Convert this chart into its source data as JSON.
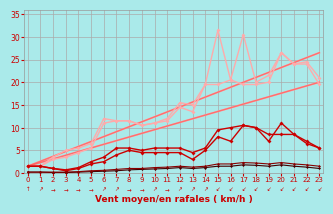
{
  "title": "",
  "xlabel": "Vent moyen/en rafales ( km/h )",
  "xlabel_color": "#cc0000",
  "background_color": "#aaeaea",
  "grid_color": "#aaaaaa",
  "x_ticks": [
    0,
    1,
    2,
    3,
    4,
    5,
    6,
    7,
    8,
    9,
    10,
    11,
    12,
    13,
    14,
    15,
    16,
    17,
    18,
    19,
    20,
    21,
    22,
    23
  ],
  "y_ticks": [
    0,
    5,
    10,
    15,
    20,
    25,
    30,
    35
  ],
  "xlim": [
    -0.3,
    23.3
  ],
  "ylim": [
    0,
    36
  ],
  "series": [
    {
      "comment": "straight line lower light pink",
      "x": [
        0,
        23
      ],
      "y": [
        1.5,
        20.0
      ],
      "color": "#ffaaaa",
      "lw": 1.3,
      "marker": null,
      "ms": 0,
      "alpha": 1.0,
      "zorder": 2
    },
    {
      "comment": "straight line upper light pink",
      "x": [
        0,
        23
      ],
      "y": [
        1.5,
        26.5
      ],
      "color": "#ffaaaa",
      "lw": 1.3,
      "marker": null,
      "ms": 0,
      "alpha": 1.0,
      "zorder": 2
    },
    {
      "comment": "straight line lower medium red",
      "x": [
        0,
        23
      ],
      "y": [
        1.5,
        20.0
      ],
      "color": "#ff5555",
      "lw": 1.0,
      "marker": null,
      "ms": 0,
      "alpha": 0.7,
      "zorder": 3
    },
    {
      "comment": "straight line upper medium red",
      "x": [
        0,
        23
      ],
      "y": [
        1.5,
        26.5
      ],
      "color": "#ff5555",
      "lw": 1.0,
      "marker": null,
      "ms": 0,
      "alpha": 0.7,
      "zorder": 3
    },
    {
      "comment": "zigzag upper light pink with markers - first",
      "x": [
        0,
        1,
        2,
        3,
        4,
        5,
        6,
        7,
        8,
        9,
        10,
        11,
        12,
        13,
        14,
        15,
        16,
        17,
        18,
        19,
        20,
        21,
        22,
        23
      ],
      "y": [
        1.5,
        1.5,
        3.5,
        5.0,
        5.5,
        6.5,
        12.0,
        11.5,
        11.5,
        10.5,
        11.0,
        12.0,
        15.5,
        15.0,
        19.5,
        31.5,
        20.5,
        30.5,
        20.0,
        21.5,
        26.5,
        24.0,
        24.5,
        21.0
      ],
      "color": "#ffaaaa",
      "lw": 1.0,
      "marker": "D",
      "ms": 2.0,
      "alpha": 1.0,
      "zorder": 4
    },
    {
      "comment": "zigzag upper light pink with markers - second",
      "x": [
        0,
        1,
        2,
        3,
        4,
        5,
        6,
        7,
        8,
        9,
        10,
        11,
        12,
        13,
        14,
        15,
        16,
        17,
        18,
        19,
        20,
        21,
        22,
        23
      ],
      "y": [
        1.5,
        1.5,
        3.0,
        3.5,
        4.5,
        5.5,
        11.0,
        11.5,
        11.5,
        10.5,
        11.0,
        11.5,
        14.5,
        13.5,
        19.5,
        19.5,
        20.5,
        19.5,
        19.5,
        20.0,
        26.5,
        24.0,
        24.0,
        19.5
      ],
      "color": "#ffaaaa",
      "lw": 1.0,
      "marker": "D",
      "ms": 2.0,
      "alpha": 1.0,
      "zorder": 4
    },
    {
      "comment": "dark red zigzag lower - first",
      "x": [
        0,
        1,
        2,
        3,
        4,
        5,
        6,
        7,
        8,
        9,
        10,
        11,
        12,
        13,
        14,
        15,
        16,
        17,
        18,
        19,
        20,
        21,
        22,
        23
      ],
      "y": [
        1.5,
        1.5,
        1.0,
        0.7,
        1.2,
        2.5,
        3.5,
        5.5,
        5.5,
        5.0,
        5.5,
        5.5,
        5.5,
        4.5,
        5.5,
        9.5,
        10.0,
        10.5,
        10.0,
        8.5,
        8.5,
        8.5,
        6.5,
        5.5
      ],
      "color": "#cc0000",
      "lw": 1.0,
      "marker": "D",
      "ms": 2.0,
      "alpha": 1.0,
      "zorder": 5
    },
    {
      "comment": "dark red zigzag lower - second",
      "x": [
        0,
        1,
        2,
        3,
        4,
        5,
        6,
        7,
        8,
        9,
        10,
        11,
        12,
        13,
        14,
        15,
        16,
        17,
        18,
        19,
        20,
        21,
        22,
        23
      ],
      "y": [
        1.5,
        1.5,
        1.0,
        0.5,
        1.0,
        2.0,
        2.5,
        4.0,
        5.0,
        4.5,
        4.5,
        4.5,
        4.5,
        3.0,
        5.0,
        8.0,
        7.0,
        10.5,
        10.0,
        7.0,
        11.0,
        8.5,
        7.0,
        5.5
      ],
      "color": "#cc0000",
      "lw": 1.0,
      "marker": "D",
      "ms": 2.0,
      "alpha": 1.0,
      "zorder": 5
    },
    {
      "comment": "black near-zero line 1",
      "x": [
        0,
        1,
        2,
        3,
        4,
        5,
        6,
        7,
        8,
        9,
        10,
        11,
        12,
        13,
        14,
        15,
        16,
        17,
        18,
        19,
        20,
        21,
        22,
        23
      ],
      "y": [
        0.2,
        0.2,
        0.1,
        0.1,
        0.2,
        0.3,
        0.4,
        0.5,
        0.7,
        0.8,
        0.9,
        1.0,
        1.2,
        1.0,
        1.2,
        1.5,
        1.5,
        1.8,
        1.7,
        1.5,
        1.8,
        1.5,
        1.3,
        1.0
      ],
      "color": "#440000",
      "lw": 0.8,
      "marker": "D",
      "ms": 1.5,
      "alpha": 1.0,
      "zorder": 6
    },
    {
      "comment": "black near-zero line 2",
      "x": [
        0,
        1,
        2,
        3,
        4,
        5,
        6,
        7,
        8,
        9,
        10,
        11,
        12,
        13,
        14,
        15,
        16,
        17,
        18,
        19,
        20,
        21,
        22,
        23
      ],
      "y": [
        0.2,
        0.2,
        0.2,
        0.2,
        0.3,
        0.5,
        0.6,
        0.8,
        1.0,
        1.0,
        1.2,
        1.3,
        1.5,
        1.3,
        1.5,
        2.0,
        2.0,
        2.3,
        2.2,
        2.0,
        2.3,
        2.0,
        1.8,
        1.5
      ],
      "color": "#880000",
      "lw": 0.8,
      "marker": "D",
      "ms": 1.5,
      "alpha": 1.0,
      "zorder": 6
    }
  ],
  "arrow_chars": [
    "↑",
    "↗",
    "→",
    "→",
    "→",
    "→",
    "↗",
    "↗",
    "→",
    "→",
    "↗",
    "→",
    "↗",
    "↗",
    "↗",
    "↙",
    "↙",
    "↙",
    "↙",
    "↙",
    "↙",
    "↙",
    "↙",
    "↙"
  ]
}
